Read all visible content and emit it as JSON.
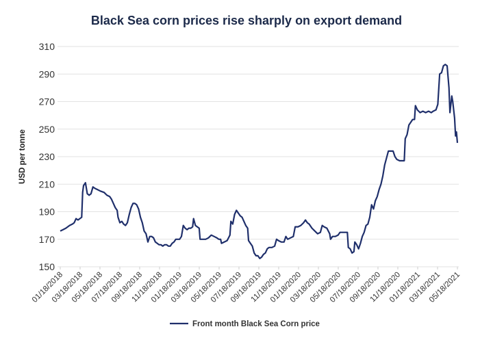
{
  "chart_data": {
    "type": "line",
    "title": "Black Sea corn prices rise sharply on export demand",
    "xlabel": "",
    "ylabel": "USD per tonne",
    "ylim": [
      150,
      310
    ],
    "yticks": [
      150,
      170,
      190,
      210,
      230,
      250,
      270,
      290,
      310
    ],
    "xticks": [
      "01/18/2018",
      "03/18/2018",
      "05/18/2018",
      "07/18/2018",
      "09/18/2018",
      "11/18/2018",
      "01/18/2019",
      "03/18/2019",
      "05/18/2019",
      "07/18/2019",
      "09/18/2019",
      "11/18/2019",
      "01/18/2020",
      "03/18/2020",
      "05/18/2020",
      "07/18/2020",
      "09/18/2020",
      "11/18/2020",
      "01/18/2021",
      "03/18/2021",
      "05/18/2021"
    ],
    "xlim_months": [
      0,
      40.3
    ],
    "grid": "horizontal",
    "legend_position": "bottom-center",
    "series": [
      {
        "name": "Front month Black Sea Corn price",
        "color": "#1f2f6b",
        "points": [
          [
            0.0,
            176
          ],
          [
            0.3,
            177
          ],
          [
            0.6,
            178
          ],
          [
            1.0,
            180
          ],
          [
            1.3,
            181
          ],
          [
            1.5,
            182
          ],
          [
            1.7,
            185
          ],
          [
            1.9,
            184
          ],
          [
            2.1,
            185
          ],
          [
            2.3,
            186
          ],
          [
            2.4,
            204
          ],
          [
            2.5,
            209
          ],
          [
            2.7,
            211
          ],
          [
            2.9,
            203
          ],
          [
            3.1,
            202
          ],
          [
            3.3,
            203
          ],
          [
            3.5,
            208
          ],
          [
            3.7,
            207
          ],
          [
            4.0,
            206
          ],
          [
            4.3,
            205
          ],
          [
            4.7,
            204
          ],
          [
            5.0,
            202
          ],
          [
            5.3,
            201
          ],
          [
            5.5,
            199
          ],
          [
            5.7,
            196
          ],
          [
            5.9,
            193
          ],
          [
            6.1,
            191
          ],
          [
            6.2,
            186
          ],
          [
            6.4,
            182
          ],
          [
            6.6,
            183
          ],
          [
            6.8,
            181
          ],
          [
            7.0,
            180
          ],
          [
            7.2,
            182
          ],
          [
            7.4,
            188
          ],
          [
            7.6,
            193
          ],
          [
            7.8,
            196
          ],
          [
            8.0,
            196
          ],
          [
            8.2,
            195
          ],
          [
            8.4,
            192
          ],
          [
            8.6,
            186
          ],
          [
            8.8,
            182
          ],
          [
            9.0,
            176
          ],
          [
            9.2,
            174
          ],
          [
            9.4,
            168
          ],
          [
            9.6,
            172
          ],
          [
            9.8,
            172
          ],
          [
            10.0,
            171
          ],
          [
            10.2,
            168
          ],
          [
            10.4,
            167
          ],
          [
            10.6,
            166
          ],
          [
            10.8,
            166
          ],
          [
            11.0,
            165
          ],
          [
            11.2,
            166
          ],
          [
            11.4,
            166
          ],
          [
            11.6,
            165
          ],
          [
            11.8,
            165
          ],
          [
            12.0,
            167
          ],
          [
            12.2,
            168
          ],
          [
            12.4,
            170
          ],
          [
            12.6,
            170
          ],
          [
            12.8,
            170
          ],
          [
            13.0,
            172
          ],
          [
            13.2,
            180
          ],
          [
            13.4,
            178
          ],
          [
            13.6,
            177
          ],
          [
            13.8,
            178
          ],
          [
            14.0,
            178
          ],
          [
            14.2,
            179
          ],
          [
            14.3,
            185
          ],
          [
            14.5,
            180
          ],
          [
            14.7,
            179
          ],
          [
            14.9,
            178
          ],
          [
            15.0,
            170
          ],
          [
            15.3,
            170
          ],
          [
            15.6,
            170
          ],
          [
            15.9,
            171
          ],
          [
            16.2,
            173
          ],
          [
            16.5,
            172
          ],
          [
            16.8,
            171
          ],
          [
            17.0,
            170
          ],
          [
            17.2,
            170
          ],
          [
            17.3,
            167
          ],
          [
            17.6,
            168
          ],
          [
            17.9,
            169
          ],
          [
            18.2,
            173
          ],
          [
            18.3,
            183
          ],
          [
            18.5,
            181
          ],
          [
            18.7,
            188
          ],
          [
            18.9,
            191
          ],
          [
            19.1,
            189
          ],
          [
            19.3,
            187
          ],
          [
            19.5,
            186
          ],
          [
            19.7,
            183
          ],
          [
            19.9,
            180
          ],
          [
            20.1,
            178
          ],
          [
            20.2,
            169
          ],
          [
            20.4,
            167
          ],
          [
            20.6,
            165
          ],
          [
            20.8,
            160
          ],
          [
            21.0,
            158
          ],
          [
            21.2,
            158
          ],
          [
            21.4,
            156
          ],
          [
            21.6,
            157
          ],
          [
            21.8,
            159
          ],
          [
            22.0,
            160
          ],
          [
            22.2,
            163
          ],
          [
            22.4,
            164
          ],
          [
            22.7,
            164
          ],
          [
            23.0,
            165
          ],
          [
            23.2,
            170
          ],
          [
            23.4,
            169
          ],
          [
            23.7,
            168
          ],
          [
            24.0,
            168
          ],
          [
            24.2,
            172
          ],
          [
            24.4,
            170
          ],
          [
            24.7,
            171
          ],
          [
            25.0,
            172
          ],
          [
            25.2,
            179
          ],
          [
            25.5,
            179
          ],
          [
            25.8,
            180
          ],
          [
            26.1,
            182
          ],
          [
            26.3,
            184
          ],
          [
            26.5,
            182
          ],
          [
            26.7,
            181
          ],
          [
            27.0,
            178
          ],
          [
            27.3,
            176
          ],
          [
            27.6,
            174
          ],
          [
            27.9,
            175
          ],
          [
            28.1,
            180
          ],
          [
            28.3,
            179
          ],
          [
            28.6,
            178
          ],
          [
            28.9,
            174
          ],
          [
            29.0,
            170
          ],
          [
            29.2,
            172
          ],
          [
            29.5,
            172
          ],
          [
            29.8,
            173
          ],
          [
            30.0,
            175
          ],
          [
            30.3,
            175
          ],
          [
            30.6,
            175
          ],
          [
            30.8,
            175
          ],
          [
            30.9,
            164
          ],
          [
            31.1,
            163
          ],
          [
            31.3,
            160
          ],
          [
            31.5,
            161
          ],
          [
            31.6,
            168
          ],
          [
            31.8,
            166
          ],
          [
            32.0,
            163
          ],
          [
            32.2,
            167
          ],
          [
            32.4,
            172
          ],
          [
            32.6,
            175
          ],
          [
            32.8,
            180
          ],
          [
            33.0,
            181
          ],
          [
            33.2,
            186
          ],
          [
            33.4,
            195
          ],
          [
            33.6,
            192
          ],
          [
            33.8,
            198
          ],
          [
            34.0,
            201
          ],
          [
            34.2,
            206
          ],
          [
            34.4,
            210
          ],
          [
            34.6,
            216
          ],
          [
            34.8,
            224
          ],
          [
            35.0,
            229
          ],
          [
            35.2,
            234
          ],
          [
            35.4,
            234
          ],
          [
            35.7,
            234
          ],
          [
            35.9,
            230
          ],
          [
            36.1,
            228
          ],
          [
            36.4,
            227
          ],
          [
            36.7,
            227
          ],
          [
            36.9,
            227
          ],
          [
            37.0,
            243
          ],
          [
            37.2,
            246
          ],
          [
            37.4,
            253
          ],
          [
            37.6,
            255
          ],
          [
            37.8,
            257
          ],
          [
            38.0,
            257
          ],
          [
            38.1,
            267
          ],
          [
            38.3,
            264
          ],
          [
            38.6,
            262
          ],
          [
            38.9,
            263
          ],
          [
            39.2,
            262
          ],
          [
            39.5,
            263
          ],
          [
            39.8,
            262
          ],
          [
            40.0,
            263
          ],
          [
            40.3,
            264
          ],
          [
            40.5,
            268
          ],
          [
            40.7,
            290
          ],
          [
            40.9,
            291
          ],
          [
            41.1,
            296
          ],
          [
            41.3,
            297
          ],
          [
            41.5,
            296
          ],
          [
            41.7,
            280
          ],
          [
            41.8,
            262
          ],
          [
            42.0,
            274
          ],
          [
            42.1,
            270
          ],
          [
            42.3,
            258
          ],
          [
            42.4,
            245
          ],
          [
            42.5,
            248
          ],
          [
            42.6,
            240
          ]
        ]
      }
    ]
  }
}
